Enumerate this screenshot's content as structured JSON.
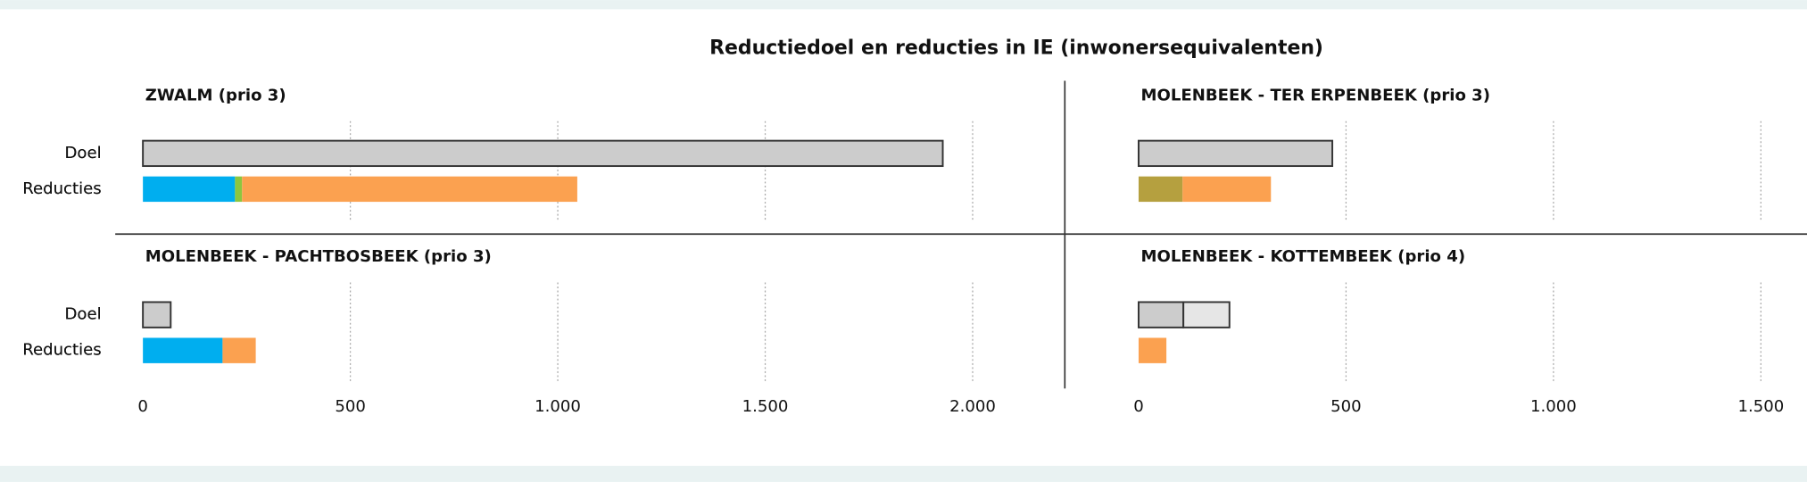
{
  "title": "Reductiedoel en reducties in IE (inwonersequivalenten)",
  "chart_data": [
    {
      "type": "bar",
      "orientation": "horizontal",
      "stacked": true,
      "title": "ZWALM (prio 3)",
      "categories": [
        "Doel",
        "Reducties"
      ],
      "series": [
        {
          "color": "#cccccc",
          "outline": "#333333",
          "values": [
            1928,
            null
          ]
        },
        {
          "color": "#00aeef",
          "values": [
            null,
            222
          ]
        },
        {
          "color": "#8cc63f",
          "values": [
            null,
            17
          ]
        },
        {
          "color": "#fba150",
          "values": [
            null,
            808
          ]
        }
      ],
      "xlim": [
        0,
        2200
      ],
      "xticks": [
        0,
        500,
        1000,
        1500,
        2000
      ],
      "tick_labels": false,
      "grid": true
    },
    {
      "type": "bar",
      "orientation": "horizontal",
      "stacked": true,
      "title": "MOLENBEEK - TER ERPENBEEK (prio 3)",
      "categories": [
        "Doel",
        "Reducties"
      ],
      "series": [
        {
          "color": "#cccccc",
          "outline": "#333333",
          "values": [
            467,
            null
          ]
        },
        {
          "color": "#b5a03f",
          "values": [
            null,
            106
          ]
        },
        {
          "color": "#fba150",
          "values": [
            null,
            213
          ]
        }
      ],
      "xlim": [
        0,
        1600
      ],
      "xticks": [
        0,
        500,
        1000,
        1500
      ],
      "tick_labels": false,
      "grid": true
    },
    {
      "type": "bar",
      "orientation": "horizontal",
      "stacked": true,
      "title": "MOLENBEEK - PACHTBOSBEEK (prio 3)",
      "categories": [
        "Doel",
        "Reducties"
      ],
      "series": [
        {
          "color": "#cccccc",
          "outline": "#333333",
          "values": [
            67,
            null
          ]
        },
        {
          "color": "#00aeef",
          "values": [
            null,
            192
          ]
        },
        {
          "color": "#fba150",
          "values": [
            null,
            80
          ]
        }
      ],
      "xlim": [
        0,
        2200
      ],
      "xticks": [
        0,
        500,
        {
          "value": 1000,
          "label": "1.000"
        },
        {
          "value": 1500,
          "label": "1.500"
        },
        {
          "value": 2000,
          "label": "2.000"
        }
      ],
      "tick_labels": true,
      "grid": true
    },
    {
      "type": "bar",
      "orientation": "horizontal",
      "stacked": true,
      "title": "MOLENBEEK - KOTTEMBEEK (prio 4)",
      "categories": [
        "Doel",
        "Reducties"
      ],
      "series": [
        {
          "color": "#cccccc",
          "outline": "#333333",
          "values": [
            108,
            null
          ]
        },
        {
          "color": "#e6e6e6",
          "outline": "#333333",
          "values": [
            111,
            null
          ]
        },
        {
          "color": "#fba150",
          "values": [
            null,
            67
          ]
        }
      ],
      "xlim": [
        0,
        1600
      ],
      "xticks": [
        0,
        500,
        {
          "value": 1000,
          "label": "1.000"
        },
        {
          "value": 1500,
          "label": "1.500"
        }
      ],
      "tick_labels": true,
      "grid": true
    }
  ]
}
